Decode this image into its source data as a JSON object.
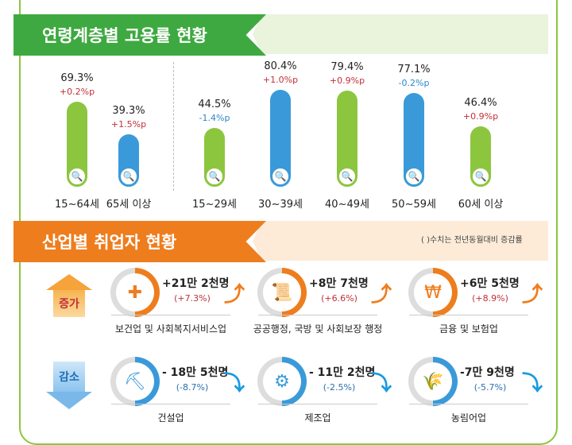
{
  "colors": {
    "green": "#8cc63f",
    "blue": "#3a9ad9",
    "orange": "#ee7d1e",
    "red": "#c0303a",
    "change_blue": "#2a86c8"
  },
  "section1": {
    "title": "연령계층별 고용률 현황",
    "groups": [
      {
        "label": "15~64세",
        "rate": "69.3%",
        "value": 69.3,
        "change": "+0.2%p",
        "color": "green",
        "icon": "document-search-icon"
      },
      {
        "label": "65세 이상",
        "rate": "39.3%",
        "value": 39.3,
        "change": "+1.5%p",
        "color": "blue",
        "icon": "document-search-icon"
      },
      {
        "label": "15~29세",
        "rate": "44.5%",
        "value": 44.5,
        "change": "-1.4%p",
        "color": "green",
        "icon": "document-search-icon"
      },
      {
        "label": "30~39세",
        "rate": "80.4%",
        "value": 80.4,
        "change": "+1.0%p",
        "color": "blue",
        "icon": "document-search-icon"
      },
      {
        "label": "40~49세",
        "rate": "79.4%",
        "value": 79.4,
        "change": "+0.9%p",
        "color": "green",
        "icon": "document-search-icon"
      },
      {
        "label": "50~59세",
        "rate": "77.1%",
        "value": 77.1,
        "change": "-0.2%p",
        "color": "blue",
        "icon": "document-search-icon"
      },
      {
        "label": "60세 이상",
        "rate": "46.4%",
        "value": 46.4,
        "change": "+0.9%p",
        "color": "green",
        "icon": "document-search-icon"
      }
    ]
  },
  "section2": {
    "title": "산업별 취업자 현황",
    "note": "( )수치는 전년동월대비 증감률",
    "increase_label": "증가",
    "decrease_label": "감소",
    "increase": [
      {
        "industry": "보건업 및 사회복지서비스업",
        "amount": "+21만 2천명",
        "pct": "(+7.3%)",
        "icon": "medical-bag-icon"
      },
      {
        "industry": "공공행정, 국방 및 사회보장 행정",
        "amount": "+8만 7천명",
        "pct": "(+6.6%)",
        "icon": "scroll-icon"
      },
      {
        "industry": "금융 및 보험업",
        "amount": "+6만 5천명",
        "pct": "(+8.9%)",
        "icon": "laptop-won-icon"
      }
    ],
    "decrease": [
      {
        "industry": "건설업",
        "amount": "- 18만 5천명",
        "pct": "(-8.7%)",
        "icon": "excavator-icon"
      },
      {
        "industry": "제조업",
        "amount": "- 11만 2천명",
        "pct": "(-2.5%)",
        "icon": "gear-icon"
      },
      {
        "industry": "농림어업",
        "amount": "-7만 9천명",
        "pct": "(-5.7%)",
        "icon": "wheat-icon"
      }
    ]
  }
}
